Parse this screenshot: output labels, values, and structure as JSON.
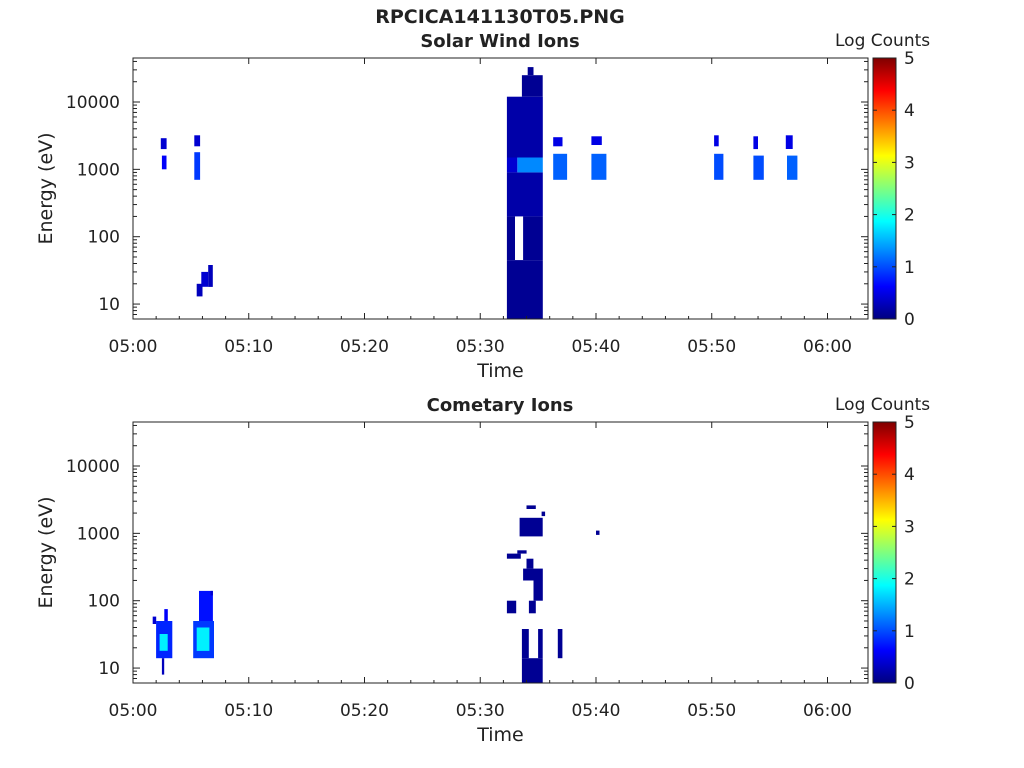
{
  "figure": {
    "title": "RPCICA141130T05.PNG"
  },
  "colors": {
    "jet": [
      "#00007f",
      "#0000ff",
      "#007fff",
      "#00ffff",
      "#7fff7f",
      "#ffff00",
      "#ff7f00",
      "#ff0000",
      "#7f0000"
    ],
    "axis": "#222222"
  },
  "chart_data": [
    {
      "type": "heatmap",
      "title": "Solar Wind Ions",
      "xlabel": "Time",
      "ylabel": "Energy (eV)",
      "x_ticks": [
        "05:00",
        "05:10",
        "05:20",
        "05:30",
        "05:40",
        "05:50",
        "06:00"
      ],
      "x_tick_minutes": [
        0,
        10,
        20,
        30,
        40,
        50,
        60
      ],
      "xlim_minutes": [
        0,
        63.5
      ],
      "y_scale": "log",
      "y_ticks": [
        "10",
        "100",
        "1000",
        "10000"
      ],
      "y_tick_values": [
        10,
        100,
        1000,
        10000
      ],
      "ylim": [
        6,
        45000
      ],
      "colorbar": {
        "label": "Log Counts",
        "ticks": [
          "0",
          "1",
          "2",
          "3",
          "4",
          "5"
        ],
        "range": [
          0,
          5
        ],
        "colormap": "jet"
      },
      "cells": [
        {
          "t0": 2.4,
          "t1": 2.9,
          "e0": 2000,
          "e1": 2900,
          "v": 0.4
        },
        {
          "t0": 2.5,
          "t1": 2.9,
          "e0": 1000,
          "e1": 1600,
          "v": 0.6
        },
        {
          "t0": 5.3,
          "t1": 5.8,
          "e0": 2200,
          "e1": 3200,
          "v": 0.4
        },
        {
          "t0": 5.3,
          "t1": 5.8,
          "e0": 700,
          "e1": 1800,
          "v": 0.9
        },
        {
          "t0": 5.5,
          "t1": 6.0,
          "e0": 13,
          "e1": 20,
          "v": 0.3
        },
        {
          "t0": 5.9,
          "t1": 6.5,
          "e0": 18,
          "e1": 30,
          "v": 0.4
        },
        {
          "t0": 6.5,
          "t1": 6.9,
          "e0": 18,
          "e1": 38,
          "v": 0.3
        },
        {
          "t0": 32.3,
          "t1": 35.4,
          "e0": 6,
          "e1": 45,
          "v": 0.1
        },
        {
          "t0": 32.3,
          "t1": 33.0,
          "e0": 45,
          "e1": 200,
          "v": 0.1
        },
        {
          "t0": 33.7,
          "t1": 35.4,
          "e0": 45,
          "e1": 200,
          "v": 0.1
        },
        {
          "t0": 32.3,
          "t1": 35.4,
          "e0": 200,
          "e1": 900,
          "v": 0.2
        },
        {
          "t0": 33.2,
          "t1": 35.4,
          "e0": 900,
          "e1": 1500,
          "v": 1.3
        },
        {
          "t0": 32.3,
          "t1": 33.2,
          "e0": 900,
          "e1": 1500,
          "v": 0.4
        },
        {
          "t0": 32.3,
          "t1": 35.4,
          "e0": 1500,
          "e1": 12000,
          "v": 0.2
        },
        {
          "t0": 33.6,
          "t1": 35.4,
          "e0": 12000,
          "e1": 25000,
          "v": 0.1
        },
        {
          "t0": 34.1,
          "t1": 34.6,
          "e0": 25000,
          "e1": 33000,
          "v": 0.1
        },
        {
          "t0": 36.3,
          "t1": 37.1,
          "e0": 2200,
          "e1": 3000,
          "v": 0.5
        },
        {
          "t0": 36.3,
          "t1": 37.5,
          "e0": 700,
          "e1": 1700,
          "v": 1.1
        },
        {
          "t0": 39.6,
          "t1": 40.5,
          "e0": 2300,
          "e1": 3100,
          "v": 0.5
        },
        {
          "t0": 39.6,
          "t1": 40.9,
          "e0": 700,
          "e1": 1700,
          "v": 1.1
        },
        {
          "t0": 50.2,
          "t1": 50.6,
          "e0": 2200,
          "e1": 3200,
          "v": 0.5
        },
        {
          "t0": 50.2,
          "t1": 51.0,
          "e0": 700,
          "e1": 1700,
          "v": 1.0
        },
        {
          "t0": 53.6,
          "t1": 54.0,
          "e0": 2000,
          "e1": 3100,
          "v": 0.5
        },
        {
          "t0": 53.6,
          "t1": 54.5,
          "e0": 700,
          "e1": 1600,
          "v": 1.0
        },
        {
          "t0": 56.4,
          "t1": 57.0,
          "e0": 2000,
          "e1": 3200,
          "v": 0.5
        },
        {
          "t0": 56.5,
          "t1": 57.4,
          "e0": 700,
          "e1": 1600,
          "v": 1.1
        }
      ]
    },
    {
      "type": "heatmap",
      "title": "Cometary Ions",
      "xlabel": "Time",
      "ylabel": "Energy (eV)",
      "x_ticks": [
        "05:00",
        "05:10",
        "05:20",
        "05:30",
        "05:40",
        "05:50",
        "06:00"
      ],
      "x_tick_minutes": [
        0,
        10,
        20,
        30,
        40,
        50,
        60
      ],
      "xlim_minutes": [
        0,
        63.5
      ],
      "y_scale": "log",
      "y_ticks": [
        "10",
        "100",
        "1000",
        "10000"
      ],
      "y_tick_values": [
        10,
        100,
        1000,
        10000
      ],
      "ylim": [
        6,
        45000
      ],
      "colorbar": {
        "label": "Log Counts",
        "ticks": [
          "0",
          "1",
          "2",
          "3",
          "4",
          "5"
        ],
        "range": [
          0,
          5
        ],
        "colormap": "jet"
      },
      "cells": [
        {
          "t0": 1.7,
          "t1": 2.0,
          "e0": 45,
          "e1": 58,
          "v": 0.4
        },
        {
          "t0": 2.0,
          "t1": 3.4,
          "e0": 14,
          "e1": 50,
          "v": 0.8
        },
        {
          "t0": 2.3,
          "t1": 3.0,
          "e0": 18,
          "e1": 32,
          "v": 1.8
        },
        {
          "t0": 2.5,
          "t1": 2.7,
          "e0": 8,
          "e1": 14,
          "v": 0.3
        },
        {
          "t0": 2.7,
          "t1": 3.0,
          "e0": 50,
          "e1": 75,
          "v": 0.6
        },
        {
          "t0": 5.2,
          "t1": 7.0,
          "e0": 14,
          "e1": 50,
          "v": 0.9
        },
        {
          "t0": 5.5,
          "t1": 6.6,
          "e0": 18,
          "e1": 40,
          "v": 1.8
        },
        {
          "t0": 5.7,
          "t1": 6.9,
          "e0": 50,
          "e1": 140,
          "v": 0.7
        },
        {
          "t0": 6.7,
          "t1": 6.9,
          "e0": 120,
          "e1": 140,
          "v": 0.4
        },
        {
          "t0": 33.6,
          "t1": 35.4,
          "e0": 6,
          "e1": 14,
          "v": 0.1
        },
        {
          "t0": 33.6,
          "t1": 34.2,
          "e0": 14,
          "e1": 38,
          "v": 0.1
        },
        {
          "t0": 35.0,
          "t1": 35.4,
          "e0": 14,
          "e1": 38,
          "v": 0.1
        },
        {
          "t0": 36.7,
          "t1": 37.1,
          "e0": 14,
          "e1": 38,
          "v": 0.1
        },
        {
          "t0": 32.3,
          "t1": 33.1,
          "e0": 65,
          "e1": 100,
          "v": 0.1
        },
        {
          "t0": 34.2,
          "t1": 34.8,
          "e0": 65,
          "e1": 100,
          "v": 0.1
        },
        {
          "t0": 34.6,
          "t1": 35.4,
          "e0": 100,
          "e1": 200,
          "v": 0.1
        },
        {
          "t0": 33.7,
          "t1": 35.4,
          "e0": 200,
          "e1": 300,
          "v": 0.1
        },
        {
          "t0": 34.0,
          "t1": 34.6,
          "e0": 300,
          "e1": 420,
          "v": 0.1
        },
        {
          "t0": 32.3,
          "t1": 33.5,
          "e0": 420,
          "e1": 500,
          "v": 0.1
        },
        {
          "t0": 33.2,
          "t1": 34.0,
          "e0": 500,
          "e1": 560,
          "v": 0.1
        },
        {
          "t0": 33.4,
          "t1": 35.4,
          "e0": 900,
          "e1": 1700,
          "v": 0.1
        },
        {
          "t0": 35.3,
          "t1": 35.6,
          "e0": 1800,
          "e1": 2100,
          "v": 0.1
        },
        {
          "t0": 34.0,
          "t1": 34.8,
          "e0": 2300,
          "e1": 2600,
          "v": 0.1
        },
        {
          "t0": 40.0,
          "t1": 40.3,
          "e0": 950,
          "e1": 1100,
          "v": 0.1
        }
      ]
    }
  ]
}
